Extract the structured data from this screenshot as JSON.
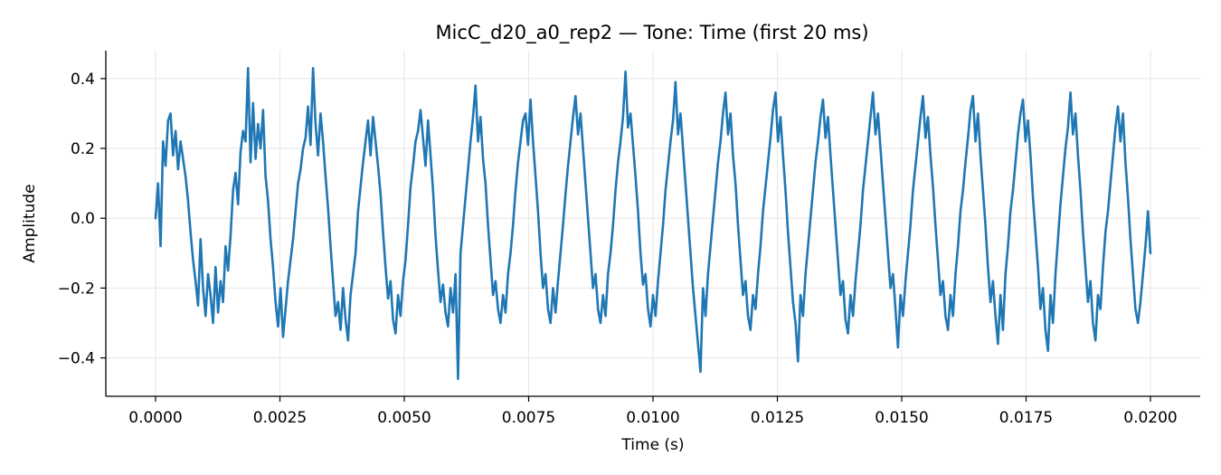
{
  "chart_data": {
    "type": "line",
    "title": "MicC_d20_a0_rep2 — Tone: Time (first 20 ms)",
    "xlabel": "Time (s)",
    "ylabel": "Amplitude",
    "xlim": [
      -0.001,
      0.021
    ],
    "ylim": [
      -0.51,
      0.48
    ],
    "grid": true,
    "x_ticks": [
      0.0,
      0.0025,
      0.005,
      0.0075,
      0.01,
      0.0125,
      0.015,
      0.0175,
      0.02
    ],
    "x_tick_labels": [
      "0.0000",
      "0.0025",
      "0.0050",
      "0.0075",
      "0.0100",
      "0.0125",
      "0.0150",
      "0.0175",
      "0.0200"
    ],
    "y_ticks": [
      -0.4,
      -0.2,
      0.0,
      0.2,
      0.4
    ],
    "y_tick_labels": [
      "−0.4",
      "−0.2",
      "0.0",
      "0.2",
      "0.4"
    ],
    "series": [
      {
        "color": "#1f77b4",
        "x_start": 0.0,
        "x_step": 2.08333e-05,
        "values": [
          0.0,
          0.1,
          -0.08,
          0.22,
          0.15,
          0.28,
          0.3,
          0.18,
          0.25,
          0.14,
          0.22,
          0.17,
          0.12,
          0.05,
          -0.04,
          -0.12,
          -0.18,
          -0.25,
          -0.06,
          -0.2,
          -0.28,
          -0.16,
          -0.22,
          -0.3,
          -0.14,
          -0.27,
          -0.18,
          -0.24,
          -0.08,
          -0.15,
          -0.05,
          0.08,
          0.13,
          0.04,
          0.19,
          0.25,
          0.22,
          0.43,
          0.16,
          0.33,
          0.17,
          0.27,
          0.2,
          0.31,
          0.12,
          0.05,
          -0.06,
          -0.14,
          -0.24,
          -0.31,
          -0.2,
          -0.34,
          -0.26,
          -0.18,
          -0.12,
          -0.06,
          0.02,
          0.1,
          0.14,
          0.2,
          0.23,
          0.32,
          0.21,
          0.43,
          0.27,
          0.18,
          0.3,
          0.22,
          0.12,
          0.03,
          -0.08,
          -0.18,
          -0.28,
          -0.24,
          -0.32,
          -0.2,
          -0.29,
          -0.35,
          -0.22,
          -0.16,
          -0.1,
          0.02,
          0.09,
          0.16,
          0.22,
          0.28,
          0.18,
          0.29,
          0.22,
          0.15,
          0.07,
          -0.04,
          -0.14,
          -0.23,
          -0.18,
          -0.29,
          -0.33,
          -0.22,
          -0.28,
          -0.18,
          -0.12,
          -0.02,
          0.09,
          0.15,
          0.22,
          0.25,
          0.31,
          0.23,
          0.15,
          0.28,
          0.18,
          0.08,
          -0.05,
          -0.15,
          -0.24,
          -0.19,
          -0.27,
          -0.31,
          -0.2,
          -0.27,
          -0.16,
          -0.46,
          -0.1,
          -0.02,
          0.06,
          0.14,
          0.22,
          0.29,
          0.38,
          0.22,
          0.29,
          0.17,
          0.1,
          -0.02,
          -0.12,
          -0.22,
          -0.18,
          -0.26,
          -0.3,
          -0.22,
          -0.27,
          -0.16,
          -0.1,
          -0.02,
          0.08,
          0.16,
          0.22,
          0.28,
          0.3,
          0.21,
          0.34,
          0.22,
          0.12,
          0.02,
          -0.1,
          -0.2,
          -0.16,
          -0.26,
          -0.3,
          -0.2,
          -0.27,
          -0.18,
          -0.1,
          -0.02,
          0.07,
          0.15,
          0.22,
          0.29,
          0.35,
          0.24,
          0.3,
          0.2,
          0.1,
          0.0,
          -0.1,
          -0.2,
          -0.16,
          -0.26,
          -0.3,
          -0.22,
          -0.28,
          -0.16,
          -0.1,
          -0.02,
          0.08,
          0.16,
          0.22,
          0.29,
          0.42,
          0.26,
          0.3,
          0.21,
          0.12,
          0.02,
          -0.1,
          -0.19,
          -0.16,
          -0.26,
          -0.31,
          -0.22,
          -0.28,
          -0.18,
          -0.1,
          -0.02,
          0.08,
          0.15,
          0.22,
          0.28,
          0.39,
          0.24,
          0.3,
          0.2,
          0.1,
          0.0,
          -0.1,
          -0.2,
          -0.28,
          -0.36,
          -0.44,
          -0.2,
          -0.28,
          -0.16,
          -0.08,
          0.0,
          0.08,
          0.16,
          0.22,
          0.3,
          0.36,
          0.24,
          0.3,
          0.18,
          0.1,
          -0.02,
          -0.12,
          -0.22,
          -0.18,
          -0.28,
          -0.32,
          -0.22,
          -0.26,
          -0.16,
          -0.08,
          0.02,
          0.09,
          0.16,
          0.23,
          0.31,
          0.36,
          0.22,
          0.29,
          0.18,
          0.08,
          -0.04,
          -0.14,
          -0.24,
          -0.3,
          -0.41,
          -0.22,
          -0.28,
          -0.16,
          -0.08,
          0.0,
          0.08,
          0.16,
          0.22,
          0.29,
          0.34,
          0.23,
          0.29,
          0.18,
          0.08,
          -0.02,
          -0.12,
          -0.22,
          -0.18,
          -0.29,
          -0.33,
          -0.22,
          -0.28,
          -0.18,
          -0.1,
          -0.02,
          0.08,
          0.15,
          0.22,
          0.29,
          0.36,
          0.24,
          0.3,
          0.2,
          0.1,
          0.0,
          -0.1,
          -0.2,
          -0.16,
          -0.26,
          -0.37,
          -0.22,
          -0.28,
          -0.18,
          -0.1,
          -0.02,
          0.08,
          0.15,
          0.22,
          0.29,
          0.35,
          0.23,
          0.29,
          0.18,
          0.09,
          -0.02,
          -0.12,
          -0.22,
          -0.18,
          -0.28,
          -0.32,
          -0.22,
          -0.28,
          -0.16,
          -0.08,
          0.02,
          0.08,
          0.16,
          0.23,
          0.31,
          0.35,
          0.22,
          0.3,
          0.18,
          0.08,
          -0.02,
          -0.14,
          -0.24,
          -0.18,
          -0.28,
          -0.36,
          -0.22,
          -0.32,
          -0.16,
          -0.08,
          0.02,
          0.08,
          0.16,
          0.24,
          0.3,
          0.34,
          0.22,
          0.28,
          0.18,
          0.06,
          -0.04,
          -0.14,
          -0.26,
          -0.2,
          -0.32,
          -0.38,
          -0.22,
          -0.3,
          -0.16,
          -0.06,
          0.04,
          0.12,
          0.2,
          0.26,
          0.36,
          0.24,
          0.3,
          0.18,
          0.08,
          -0.04,
          -0.14,
          -0.24,
          -0.18,
          -0.3,
          -0.35,
          -0.22,
          -0.26,
          -0.14,
          -0.04,
          0.02,
          0.1,
          0.18,
          0.26,
          0.32,
          0.22,
          0.3,
          0.16,
          0.06,
          -0.06,
          -0.16,
          -0.26,
          -0.3,
          -0.24,
          -0.16,
          -0.08,
          0.02,
          -0.1
        ]
      }
    ]
  }
}
